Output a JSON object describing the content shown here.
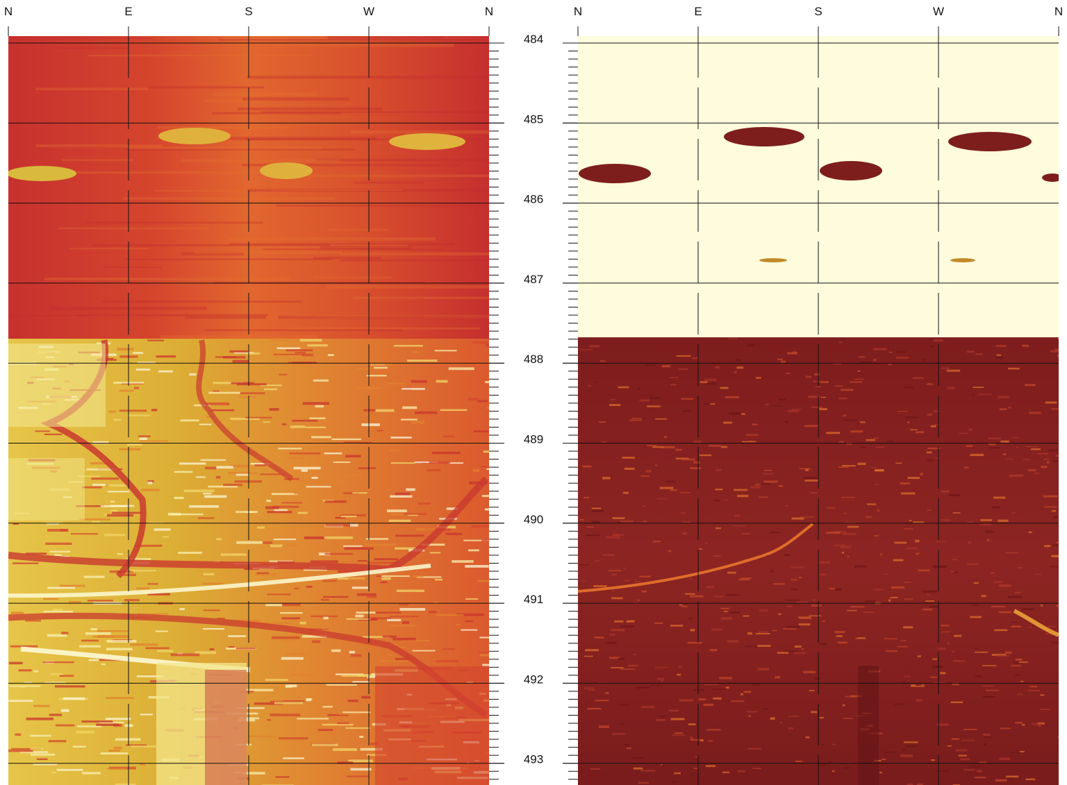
{
  "compass_labels": [
    "N",
    "E",
    "S",
    "W",
    "N"
  ],
  "depth_labels": [
    "484",
    "485",
    "486",
    "487",
    "488",
    "489",
    "490",
    "491",
    "492",
    "493"
  ],
  "depth_range": [
    484,
    493.3
  ],
  "colors": {
    "left_red": "#c8322e",
    "left_orange": "#e0662f",
    "left_gold": "#d9a72e",
    "left_pale": "#f3ea8a",
    "right_cream": "#fefcdc",
    "right_maroon": "#8a2222",
    "right_dark": "#6a1516",
    "right_bright": "#e7702b",
    "grid": "#111111"
  }
}
